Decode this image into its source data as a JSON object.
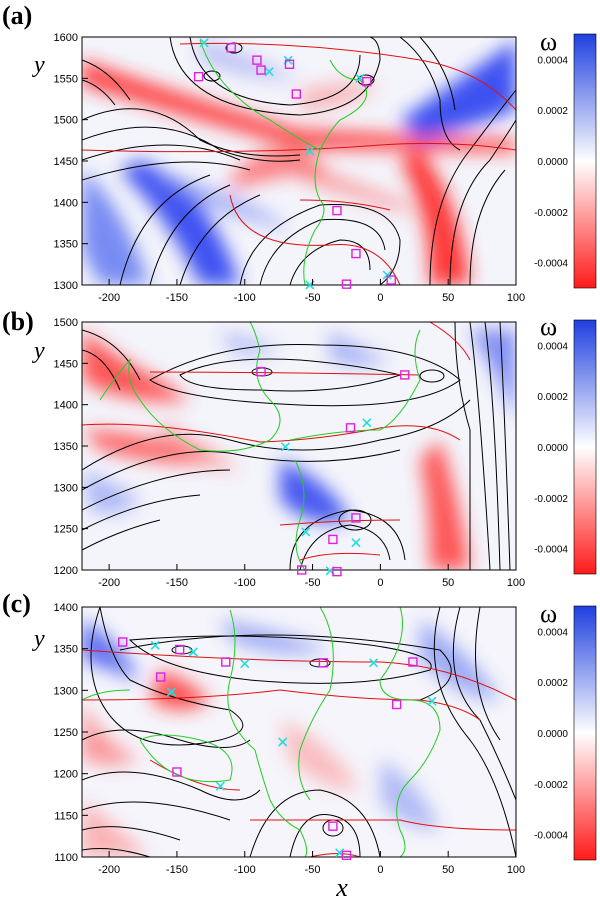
{
  "figure": {
    "xlabel": "x",
    "colorbar_label": "ω",
    "colors": {
      "positive": "#1f3fe0",
      "negative": "#ff1a1a",
      "mid": "#ffffff",
      "contour_black": "#000000",
      "contour_red": "#e01010",
      "contour_green": "#22cc22",
      "marker_cyan": "#22dddd",
      "marker_magenta": "#e020e0"
    }
  },
  "chart_data": [
    {
      "type": "heatmap",
      "panel": "(a)",
      "ylabel": "y",
      "xlim": [
        -220,
        100
      ],
      "ylim": [
        1300,
        1600
      ],
      "x_ticks": [
        "-200",
        "-150",
        "-100",
        "-50",
        "0",
        "50",
        "100"
      ],
      "y_ticks": [
        "1300",
        "1350",
        "1400",
        "1450",
        "1500",
        "1550",
        "1600"
      ],
      "x_tick_values": [
        -200,
        -150,
        -100,
        -50,
        0,
        50,
        100
      ],
      "y_tick_values": [
        1300,
        1350,
        1400,
        1450,
        1500,
        1550,
        1600
      ],
      "colorbar": {
        "label": "ω",
        "range": [
          -0.0005,
          0.0005
        ],
        "ticks": [
          "0.0004",
          "0.0002",
          "0.0000",
          "-0.0002",
          "-0.0004"
        ],
        "tick_values": [
          0.0004,
          0.0002,
          0.0,
          -0.0002,
          -0.0004
        ]
      },
      "x_points": [
        [
          -130,
          1593
        ],
        [
          -82,
          1558
        ],
        [
          -68,
          1572
        ],
        [
          -52,
          1462
        ],
        [
          -15,
          1550
        ],
        [
          -52,
          1300
        ],
        [
          5,
          1312
        ]
      ],
      "o_points": [
        [
          -110,
          1587
        ],
        [
          -91,
          1572
        ],
        [
          -88,
          1560
        ],
        [
          -67,
          1567
        ],
        [
          -62,
          1531
        ],
        [
          -134,
          1552
        ],
        [
          -10,
          1546
        ],
        [
          -32,
          1390
        ],
        [
          -18,
          1338
        ],
        [
          -25,
          1301
        ],
        [
          8,
          1306
        ]
      ]
    },
    {
      "type": "heatmap",
      "panel": "(b)",
      "ylabel": "y",
      "xlim": [
        -220,
        100
      ],
      "ylim": [
        1200,
        1500
      ],
      "x_ticks": [
        "-200",
        "-150",
        "-100",
        "-50",
        "0",
        "50",
        "100"
      ],
      "y_ticks": [
        "1200",
        "1250",
        "1300",
        "1350",
        "1400",
        "1450",
        "1500"
      ],
      "x_tick_values": [
        -200,
        -150,
        -100,
        -50,
        0,
        50,
        100
      ],
      "y_tick_values": [
        1200,
        1250,
        1300,
        1350,
        1400,
        1450,
        1500
      ],
      "colorbar": {
        "label": "ω",
        "range": [
          -0.0005,
          0.0005
        ],
        "ticks": [
          "0.0004",
          "0.0002",
          "0.0000",
          "-0.0002",
          "-0.0004"
        ],
        "tick_values": [
          0.0004,
          0.0002,
          0.0,
          -0.0002,
          -0.0004
        ]
      },
      "x_points": [
        [
          -70,
          1349
        ],
        [
          -10,
          1378
        ],
        [
          -55,
          1246
        ],
        [
          -18,
          1233
        ],
        [
          -37,
          1199
        ]
      ],
      "o_points": [
        [
          -88,
          1440
        ],
        [
          18,
          1436
        ],
        [
          -22,
          1372
        ],
        [
          -18,
          1263
        ],
        [
          -35,
          1237
        ],
        [
          -58,
          1200
        ],
        [
          -32,
          1198
        ]
      ]
    },
    {
      "type": "heatmap",
      "panel": "(c)",
      "ylabel": "y",
      "xlim": [
        -220,
        100
      ],
      "ylim": [
        1100,
        1400
      ],
      "x_ticks": [
        "-200",
        "-150",
        "-100",
        "-50",
        "0",
        "50",
        "100"
      ],
      "y_ticks": [
        "1100",
        "1150",
        "1200",
        "1250",
        "1300",
        "1350",
        "1400"
      ],
      "x_tick_values": [
        -200,
        -150,
        -100,
        -50,
        0,
        50,
        100
      ],
      "y_tick_values": [
        1100,
        1150,
        1200,
        1250,
        1300,
        1350,
        1400
      ],
      "colorbar": {
        "label": "ω",
        "range": [
          -0.0005,
          0.0005
        ],
        "ticks": [
          "0.0004",
          "0.0002",
          "0.0000",
          "-0.0002",
          "-0.0004"
        ],
        "tick_values": [
          0.0004,
          0.0002,
          0.0,
          -0.0002,
          -0.0004
        ]
      },
      "x_points": [
        [
          -166,
          1354
        ],
        [
          -138,
          1346
        ],
        [
          -100,
          1332
        ],
        [
          -154,
          1298
        ],
        [
          -5,
          1333
        ],
        [
          38,
          1287
        ],
        [
          -72,
          1238
        ],
        [
          -118,
          1185
        ],
        [
          -30,
          1105
        ]
      ],
      "o_points": [
        [
          -190,
          1358
        ],
        [
          -148,
          1349
        ],
        [
          -114,
          1334
        ],
        [
          -42,
          1333
        ],
        [
          24,
          1334
        ],
        [
          -162,
          1316
        ],
        [
          12,
          1283
        ],
        [
          -150,
          1202
        ],
        [
          -35,
          1137
        ],
        [
          -25,
          1102
        ]
      ]
    }
  ]
}
